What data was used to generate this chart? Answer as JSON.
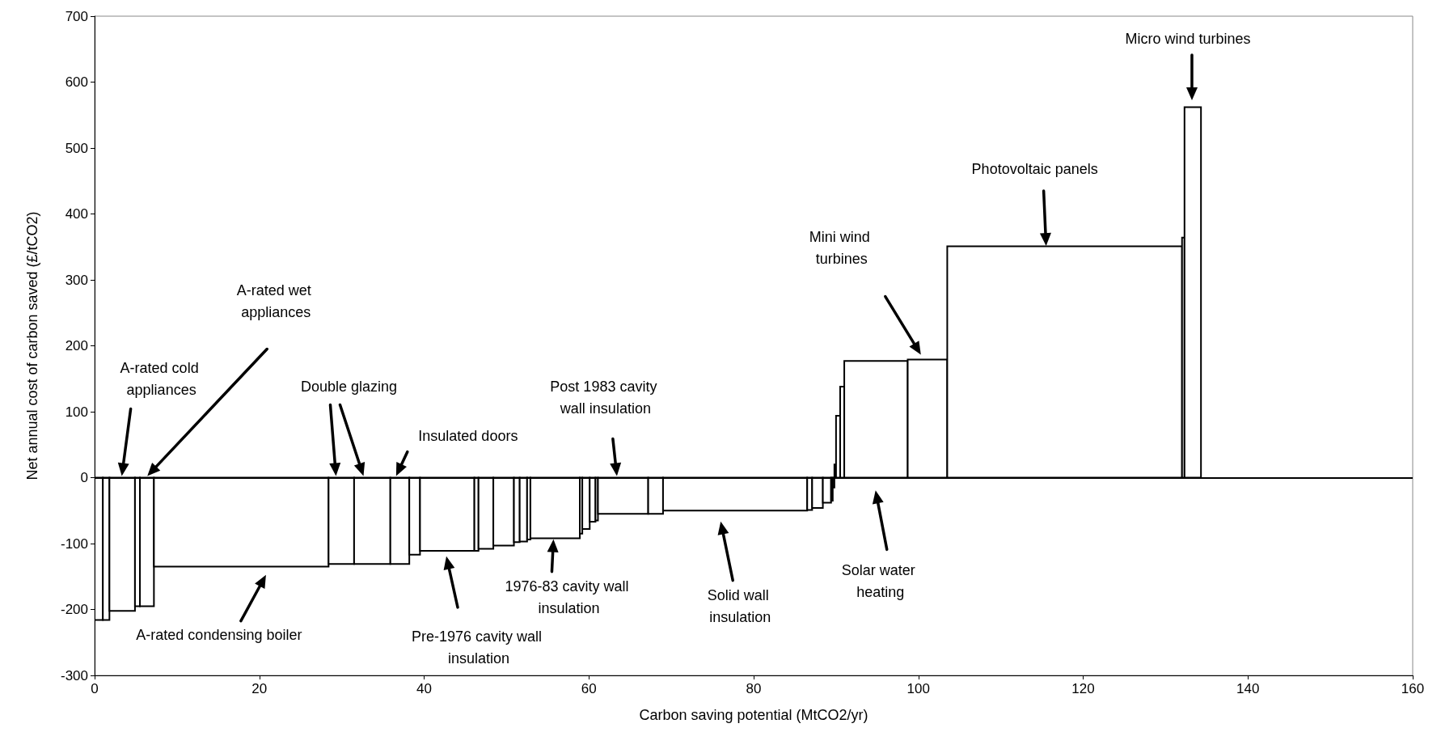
{
  "chart_data": {
    "type": "histogram",
    "xlabel": "Carbon saving potential (MtCO2/yr)",
    "ylabel": "Net annual cost of carbon saved (£/tCO2)",
    "bins": [
      0,
      1.0,
      1.8,
      4.9,
      5.5,
      7.2,
      28.4,
      31.5,
      35.9,
      38.2,
      39.5,
      46.1,
      46.6,
      48.4,
      50.9,
      51.6,
      52.5,
      52.9,
      58.9,
      59.2,
      60.1,
      60.8,
      61.1,
      67.2,
      69.0,
      86.5,
      87.1,
      88.4,
      89.4,
      89.6,
      89.8,
      90.0,
      90.5,
      91.0,
      98.7,
      103.5,
      132.0,
      132.3,
      134.3
    ],
    "values": [
      -216,
      -216,
      -202,
      -195,
      -195,
      -135,
      -131,
      -131,
      -131,
      -117,
      -111,
      -111,
      -108,
      -103,
      -98,
      -97,
      -94,
      -92,
      -85,
      -78,
      -67,
      -65,
      -55,
      -55,
      -50,
      -49,
      -46,
      -38,
      -35,
      -15,
      20,
      94,
      138,
      177,
      179,
      351,
      364,
      562
    ],
    "color": "#ffffff",
    "xlim": [
      0,
      160
    ],
    "xticks": [
      0,
      20,
      40,
      60,
      80,
      100,
      120,
      140,
      160
    ],
    "ylim": [
      -300,
      700
    ],
    "yticks": [
      -300,
      -200,
      -100,
      0,
      100,
      200,
      300,
      400,
      500,
      600,
      700
    ],
    "grid": false,
    "ref_lines": [
      {
        "axis": "y",
        "value": 0,
        "color": "#000000"
      }
    ],
    "annotations": [
      "A-rated cold appliances",
      "A-rated wet appliances",
      "Double glazing",
      "Insulated doors",
      "Post 1983 cavity wall insulation",
      "A-rated condensing boiler",
      "Pre-1976 cavity wall insulation",
      "1976-83 cavity wall insulation",
      "Solid wall insulation",
      "Solar water heating",
      "Mini wind turbines",
      "Photovoltaic panels",
      "Micro wind turbines"
    ]
  }
}
